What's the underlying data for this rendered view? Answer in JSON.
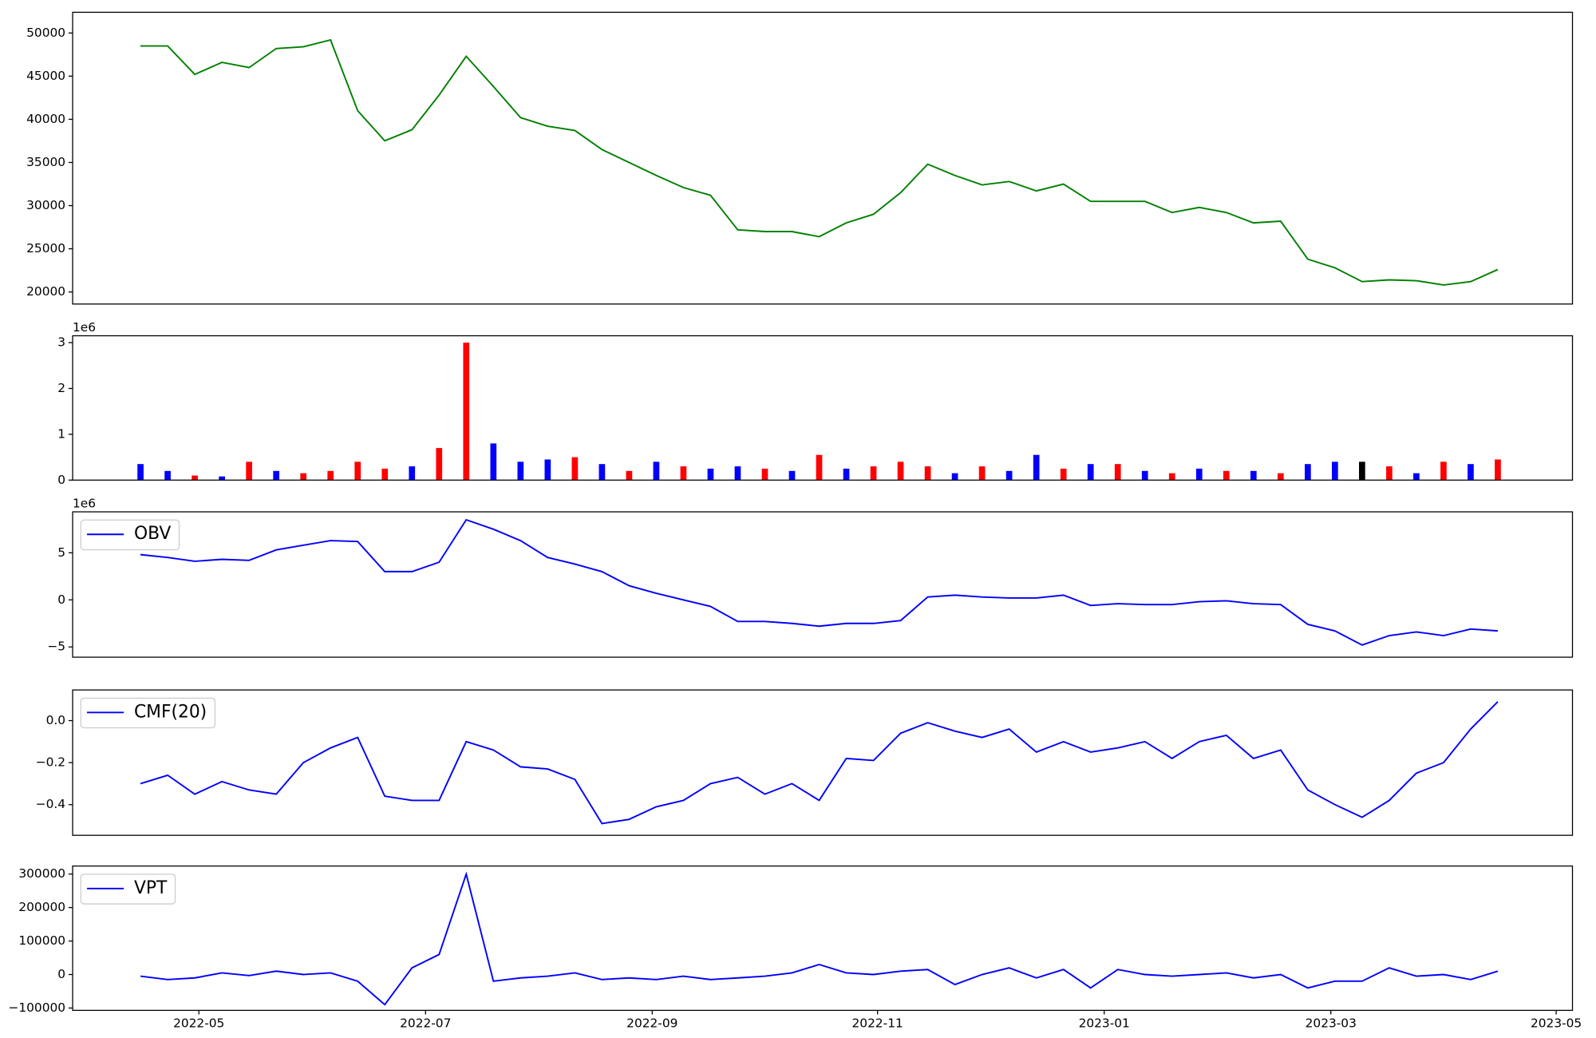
{
  "chart_data": [
    {
      "type": "line",
      "xlim": [
        2022.24,
        2023.345
      ],
      "ylim": [
        18600,
        52400
      ],
      "yticks": [
        20000,
        25000,
        30000,
        35000,
        40000,
        45000,
        50000
      ],
      "x": [
        2022.29,
        2022.31,
        2022.33,
        2022.35,
        2022.37,
        2022.39,
        2022.41,
        2022.43,
        2022.45,
        2022.47,
        2022.49,
        2022.51,
        2022.53,
        2022.55,
        2022.57,
        2022.59,
        2022.61,
        2022.63,
        2022.65,
        2022.67,
        2022.69,
        2022.71,
        2022.73,
        2022.75,
        2022.77,
        2022.79,
        2022.81,
        2022.83,
        2022.85,
        2022.87,
        2022.89,
        2022.91,
        2022.93,
        2022.95,
        2022.97,
        2022.99,
        2023.01,
        2023.03,
        2023.05,
        2023.07,
        2023.09,
        2023.11,
        2023.13,
        2023.15,
        2023.17,
        2023.19,
        2023.21,
        2023.23,
        2023.25,
        2023.27,
        2023.29
      ],
      "series": [
        {
          "color": "#008000",
          "values": [
            48500,
            48500,
            45200,
            46600,
            46000,
            48200,
            48400,
            49200,
            41000,
            37500,
            38800,
            42800,
            47300,
            43800,
            40200,
            39200,
            38700,
            36500,
            35000,
            33500,
            32100,
            31200,
            27200,
            27000,
            27000,
            26400,
            28000,
            29000,
            31500,
            34800,
            33500,
            32400,
            32800,
            31700,
            32500,
            30500,
            30500,
            30500,
            29200,
            29800,
            29200,
            28000,
            28200,
            23800,
            22800,
            21200,
            21400,
            21300,
            20800,
            21200,
            22600
          ]
        }
      ]
    },
    {
      "type": "bar",
      "xlim": [
        2022.24,
        2023.345
      ],
      "ylim": [
        0,
        3150000
      ],
      "y_offset_label": "1e6",
      "yticks": [
        0,
        {
          "value": 1000000,
          "label": "1"
        },
        {
          "value": 2000000,
          "label": "2"
        },
        {
          "value": 3000000,
          "label": "3"
        }
      ],
      "x": [
        2022.29,
        2022.31,
        2022.33,
        2022.35,
        2022.37,
        2022.39,
        2022.41,
        2022.43,
        2022.45,
        2022.47,
        2022.49,
        2022.51,
        2022.53,
        2022.55,
        2022.57,
        2022.59,
        2022.61,
        2022.63,
        2022.65,
        2022.67,
        2022.69,
        2022.71,
        2022.73,
        2022.75,
        2022.77,
        2022.79,
        2022.81,
        2022.83,
        2022.85,
        2022.87,
        2022.89,
        2022.91,
        2022.93,
        2022.95,
        2022.97,
        2022.99,
        2023.01,
        2023.03,
        2023.05,
        2023.07,
        2023.09,
        2023.11,
        2023.13,
        2023.15,
        2023.17,
        2023.19,
        2023.21,
        2023.23,
        2023.25,
        2023.27,
        2023.29
      ],
      "values": [
        350000,
        200000,
        100000,
        80000,
        400000,
        200000,
        150000,
        200000,
        400000,
        250000,
        300000,
        700000,
        3000000,
        800000,
        400000,
        450000,
        500000,
        350000,
        200000,
        400000,
        300000,
        250000,
        300000,
        250000,
        200000,
        550000,
        250000,
        300000,
        400000,
        300000,
        150000,
        300000,
        200000,
        550000,
        250000,
        350000,
        350000,
        200000,
        150000,
        250000,
        200000,
        200000,
        150000,
        350000,
        400000,
        400000,
        300000,
        150000,
        400000,
        350000,
        450000
      ],
      "colors": [
        "#0000ff",
        "#0000ff",
        "#ff0000",
        "#0000ff",
        "#ff0000",
        "#0000ff",
        "#ff0000",
        "#ff0000",
        "#ff0000",
        "#ff0000",
        "#0000ff",
        "#ff0000",
        "#ff0000",
        "#0000ff",
        "#0000ff",
        "#0000ff",
        "#ff0000",
        "#0000ff",
        "#ff0000",
        "#0000ff",
        "#ff0000",
        "#0000ff",
        "#0000ff",
        "#ff0000",
        "#0000ff",
        "#ff0000",
        "#0000ff",
        "#ff0000",
        "#ff0000",
        "#ff0000",
        "#0000ff",
        "#ff0000",
        "#0000ff",
        "#0000ff",
        "#ff0000",
        "#0000ff",
        "#ff0000",
        "#0000ff",
        "#ff0000",
        "#0000ff",
        "#ff0000",
        "#0000ff",
        "#ff0000",
        "#0000ff",
        "#0000ff",
        "#000000",
        "#ff0000",
        "#0000ff",
        "#ff0000",
        "#0000ff",
        "#ff0000"
      ]
    },
    {
      "type": "line",
      "xlim": [
        2022.24,
        2023.345
      ],
      "ylim": [
        -6090000,
        9350000
      ],
      "y_offset_label": "1e6",
      "legend": "upper left",
      "yticks": [
        {
          "value": -5000000,
          "label": "−5"
        },
        0,
        {
          "value": 5000000,
          "label": "5"
        }
      ],
      "x": [
        2022.29,
        2022.31,
        2022.33,
        2022.35,
        2022.37,
        2022.39,
        2022.41,
        2022.43,
        2022.45,
        2022.47,
        2022.49,
        2022.51,
        2022.53,
        2022.55,
        2022.57,
        2022.59,
        2022.61,
        2022.63,
        2022.65,
        2022.67,
        2022.69,
        2022.71,
        2022.73,
        2022.75,
        2022.77,
        2022.79,
        2022.81,
        2022.83,
        2022.85,
        2022.87,
        2022.89,
        2022.91,
        2022.93,
        2022.95,
        2022.97,
        2022.99,
        2023.01,
        2023.03,
        2023.05,
        2023.07,
        2023.09,
        2023.11,
        2023.13,
        2023.15,
        2023.17,
        2023.19,
        2023.21,
        2023.23,
        2023.25,
        2023.27,
        2023.29
      ],
      "series": [
        {
          "name": "OBV",
          "color": "#0000ff",
          "values": [
            4800000,
            4500000,
            4100000,
            4300000,
            4200000,
            5300000,
            5800000,
            6300000,
            6200000,
            3000000,
            3000000,
            4000000,
            8500000,
            7500000,
            6300000,
            4500000,
            3800000,
            3000000,
            1500000,
            700000,
            0,
            -700000,
            -2300000,
            -2300000,
            -2500000,
            -2800000,
            -2500000,
            -2500000,
            -2200000,
            300000,
            500000,
            300000,
            200000,
            200000,
            500000,
            -600000,
            -400000,
            -500000,
            -500000,
            -200000,
            -100000,
            -400000,
            -500000,
            -2600000,
            -3300000,
            -4800000,
            -3800000,
            -3400000,
            -3800000,
            -3100000,
            -3300000
          ]
        }
      ]
    },
    {
      "type": "line",
      "xlim": [
        2022.24,
        2023.345
      ],
      "ylim": [
        -0.546,
        0.146
      ],
      "legend": "upper left",
      "yticks": [
        {
          "value": -0.4,
          "label": "−0.4"
        },
        {
          "value": -0.2,
          "label": "−0.2"
        },
        {
          "value": 0,
          "label": "0.0"
        }
      ],
      "x": [
        2022.29,
        2022.31,
        2022.33,
        2022.35,
        2022.37,
        2022.39,
        2022.41,
        2022.43,
        2022.45,
        2022.47,
        2022.49,
        2022.51,
        2022.53,
        2022.55,
        2022.57,
        2022.59,
        2022.61,
        2022.63,
        2022.65,
        2022.67,
        2022.69,
        2022.71,
        2022.73,
        2022.75,
        2022.77,
        2022.79,
        2022.81,
        2022.83,
        2022.85,
        2022.87,
        2022.89,
        2022.91,
        2022.93,
        2022.95,
        2022.97,
        2022.99,
        2023.01,
        2023.03,
        2023.05,
        2023.07,
        2023.09,
        2023.11,
        2023.13,
        2023.15,
        2023.17,
        2023.19,
        2023.21,
        2023.23,
        2023.25,
        2023.27,
        2023.29
      ],
      "series": [
        {
          "name": "CMF(20)",
          "color": "#0000ff",
          "values": [
            -0.3,
            -0.26,
            -0.35,
            -0.29,
            -0.33,
            -0.35,
            -0.2,
            -0.13,
            -0.08,
            -0.36,
            -0.38,
            -0.38,
            -0.1,
            -0.14,
            -0.22,
            -0.23,
            -0.28,
            -0.49,
            -0.47,
            -0.41,
            -0.38,
            -0.3,
            -0.27,
            -0.35,
            -0.3,
            -0.38,
            -0.18,
            -0.19,
            -0.06,
            -0.01,
            -0.05,
            -0.08,
            -0.04,
            -0.15,
            -0.1,
            -0.15,
            -0.13,
            -0.1,
            -0.18,
            -0.1,
            -0.07,
            -0.18,
            -0.14,
            -0.33,
            -0.4,
            -0.46,
            -0.38,
            -0.25,
            -0.2,
            -0.04,
            0.09
          ]
        }
      ]
    },
    {
      "type": "line",
      "xlim": [
        2022.24,
        2023.345
      ],
      "ylim": [
        -107000,
        324000
      ],
      "legend": "upper left",
      "yticks": [
        {
          "value": -100000,
          "label": "−100000"
        },
        0,
        100000,
        200000,
        300000
      ],
      "xticks": [
        {
          "value": 2022.333,
          "label": "2022-05"
        },
        {
          "value": 2022.5,
          "label": "2022-07"
        },
        {
          "value": 2022.667,
          "label": "2022-09"
        },
        {
          "value": 2022.833,
          "label": "2022-11"
        },
        {
          "value": 2023.0,
          "label": "2023-01"
        },
        {
          "value": 2023.167,
          "label": "2023-03"
        },
        {
          "value": 2023.333,
          "label": "2023-05"
        }
      ],
      "x": [
        2022.29,
        2022.31,
        2022.33,
        2022.35,
        2022.37,
        2022.39,
        2022.41,
        2022.43,
        2022.45,
        2022.47,
        2022.49,
        2022.51,
        2022.53,
        2022.55,
        2022.57,
        2022.59,
        2022.61,
        2022.63,
        2022.65,
        2022.67,
        2022.69,
        2022.71,
        2022.73,
        2022.75,
        2022.77,
        2022.79,
        2022.81,
        2022.83,
        2022.85,
        2022.87,
        2022.89,
        2022.91,
        2022.93,
        2022.95,
        2022.97,
        2022.99,
        2023.01,
        2023.03,
        2023.05,
        2023.07,
        2023.09,
        2023.11,
        2023.13,
        2023.15,
        2023.17,
        2023.19,
        2023.21,
        2023.23,
        2023.25,
        2023.27,
        2023.29
      ],
      "series": [
        {
          "name": "VPT",
          "color": "#0000ff",
          "values": [
            -5000,
            -15000,
            -10000,
            5000,
            -3000,
            10000,
            0,
            5000,
            -20000,
            -90000,
            20000,
            60000,
            300000,
            -20000,
            -10000,
            -5000,
            5000,
            -15000,
            -10000,
            -15000,
            -5000,
            -15000,
            -10000,
            -5000,
            5000,
            30000,
            5000,
            0,
            10000,
            15000,
            -30000,
            0,
            20000,
            -10000,
            15000,
            -40000,
            15000,
            0,
            -5000,
            0,
            5000,
            -10000,
            0,
            -40000,
            -20000,
            -20000,
            20000,
            -5000,
            0,
            -15000,
            10000
          ]
        }
      ]
    }
  ]
}
